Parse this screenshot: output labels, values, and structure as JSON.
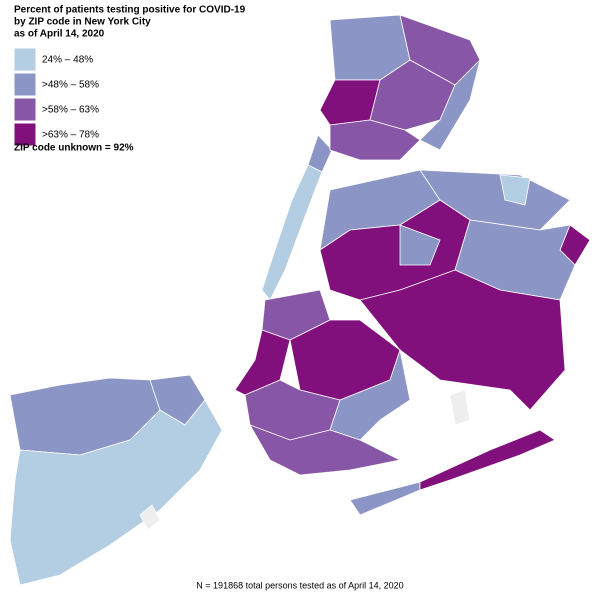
{
  "title": [
    "Percent of patients testing positive for COVID-19",
    "by ZIP code in New York City",
    "as of April 14, 2020"
  ],
  "legend": [
    {
      "label": "24% – 48%",
      "color": "#b3cde3"
    },
    {
      "label": ">48% – 58%",
      "color": "#8c96c6"
    },
    {
      "label": ">58% – 63%",
      "color": "#8856a7"
    },
    {
      "label": ">63% – 78%",
      "color": "#810f7c"
    }
  ],
  "note": "ZIP code unknown = 92%",
  "footnote": "N = 191868 total persons tested as of April 14, 2020"
}
